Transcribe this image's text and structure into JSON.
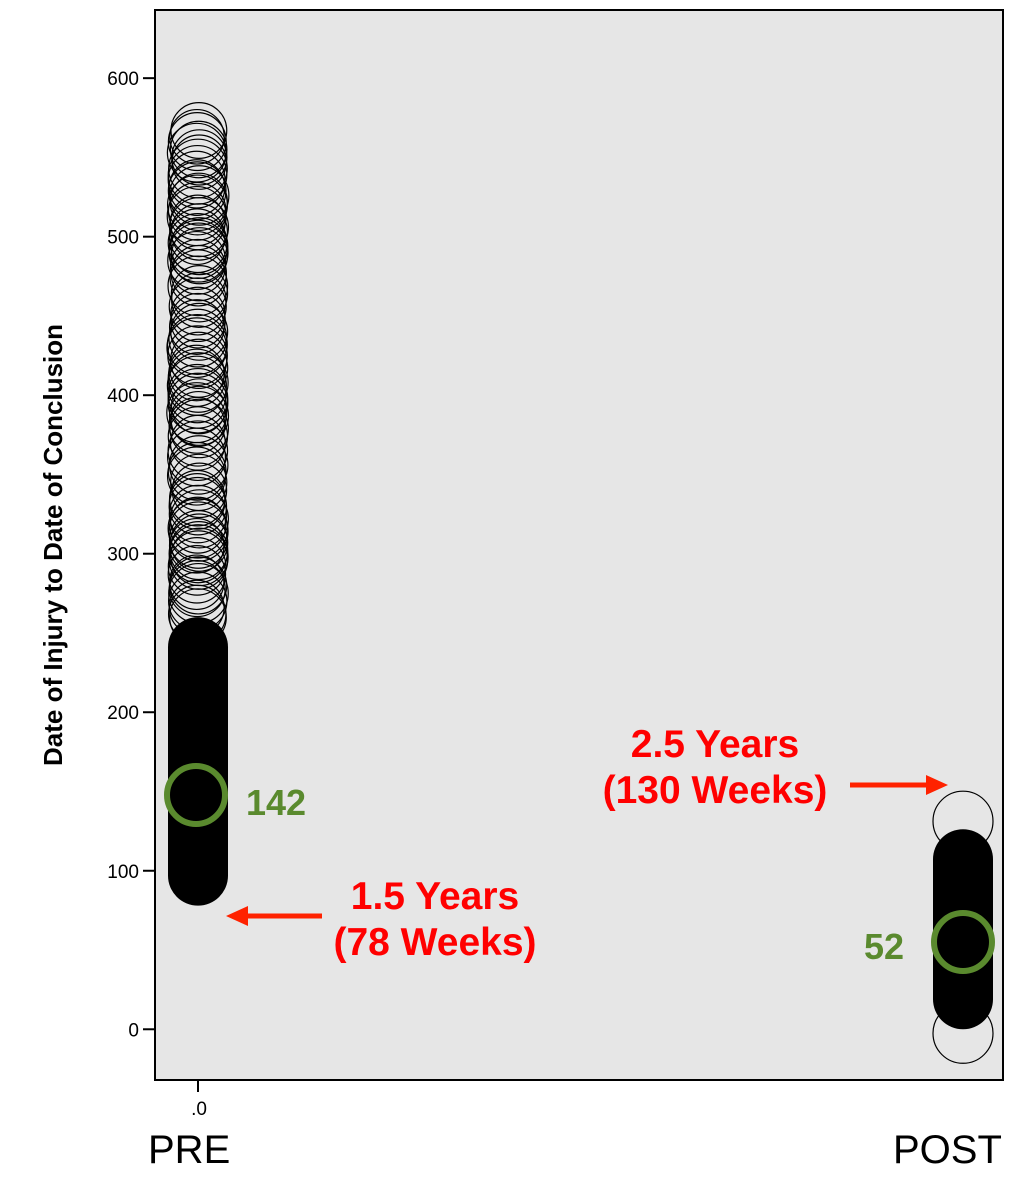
{
  "colors": {
    "plot_bg": "#e6e6e6",
    "marker": "#000000",
    "annotation_red": "#ff0000",
    "annotation_green": "#5a8a2e",
    "arrow": "#ff2200"
  },
  "category_labels": {
    "pre": "PRE",
    "post": "POST"
  },
  "annotations": {
    "pre_bound_line1": "1.5 Years",
    "pre_bound_line2": "(78 Weeks)",
    "post_bound_line1": "2.5 Years",
    "post_bound_line2": "(130 Weeks)",
    "pre_median": "142",
    "post_median": "52"
  },
  "chart_data": {
    "type": "scatter",
    "title": "",
    "xlabel": "",
    "ylabel": "Date of Injury to Date of Conclusion",
    "ylim": [
      -32,
      643
    ],
    "yticks": [
      0,
      100,
      200,
      300,
      400,
      500,
      600
    ],
    "xtick_labels": [
      ".0"
    ],
    "grid": false,
    "series": [
      {
        "category": "PRE",
        "y_min": 78,
        "y_max": 568,
        "median": 142
      },
      {
        "category": "POST",
        "y_min": 0,
        "y_max": 130,
        "median": 52
      }
    ]
  }
}
